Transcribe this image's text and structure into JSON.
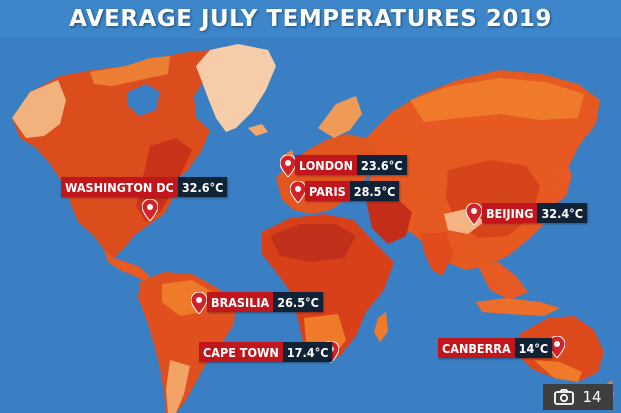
{
  "title": "AVERAGE JULY TEMPERATURES 2019",
  "colors": {
    "ocean": "#3a7fc4",
    "land_hot": "#d8401a",
    "land_warm": "#ee7a2a",
    "land_mild": "#f4a768",
    "land_cool": "#f6cda8",
    "label_city": "#c0161c",
    "label_temp": "#0f2236",
    "pin": "#d2232a"
  },
  "cities": [
    {
      "name": "WASHINGTON DC",
      "temp": "32.6°C"
    },
    {
      "name": "LONDON",
      "temp": "23.6°C"
    },
    {
      "name": "PARIS",
      "temp": "28.5°C"
    },
    {
      "name": "BEIJING",
      "temp": "32.4°C"
    },
    {
      "name": "BRASILIA",
      "temp": "26.5°C"
    },
    {
      "name": "CAPE TOWN",
      "temp": "17.4°C"
    },
    {
      "name": "CANBERRA",
      "temp": "14°C"
    }
  ],
  "gallery": {
    "icon": "camera-icon",
    "count": "14"
  }
}
